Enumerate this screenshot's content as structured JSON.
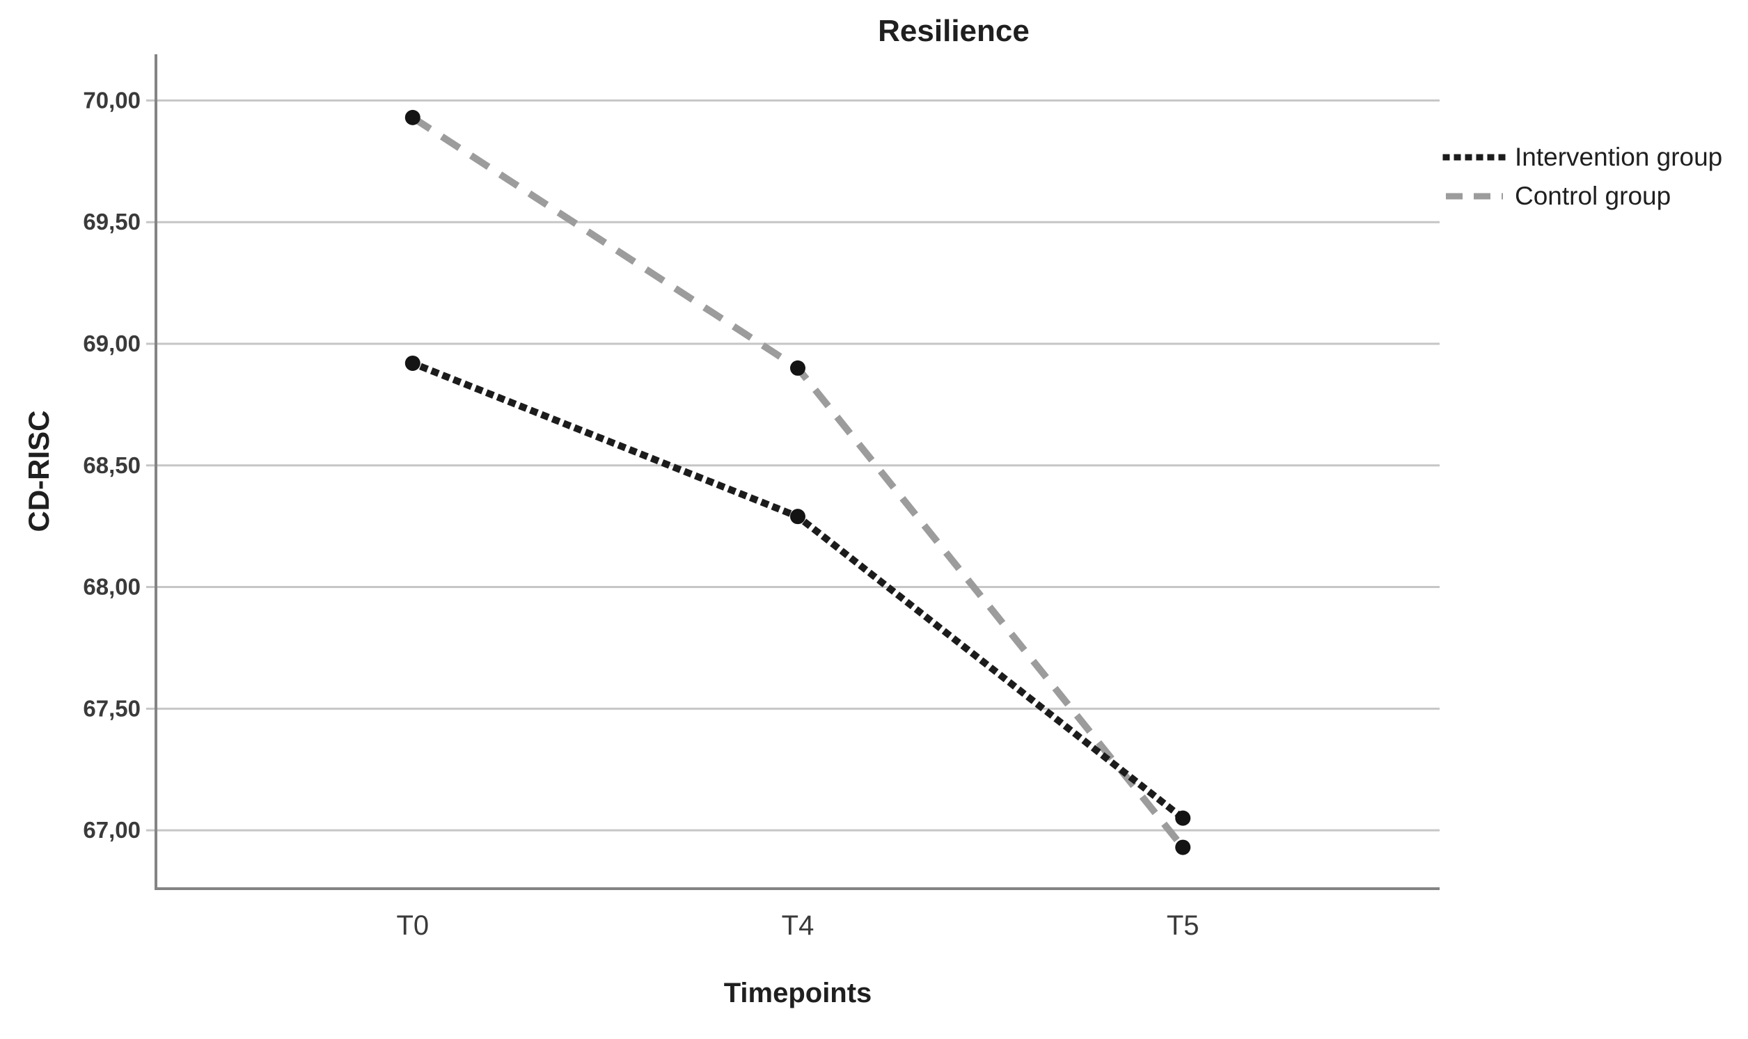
{
  "figure": {
    "title": "Resilience"
  },
  "chart_data": {
    "type": "line",
    "title": "Resilience",
    "xlabel": "Timepoints",
    "ylabel": "CD-RISC",
    "categories": [
      "T0",
      "T4",
      "T5"
    ],
    "series": [
      {
        "name": "Intervention group",
        "values": [
          68.92,
          68.29,
          67.05
        ],
        "line_style": "dotted",
        "color": "#1c1c1c",
        "marker_color": "#141414"
      },
      {
        "name": "Control group",
        "values": [
          69.93,
          68.9,
          66.93
        ],
        "line_style": "dashed",
        "color": "#9c9c9c",
        "marker_color": "#141414"
      }
    ],
    "y_ticks": {
      "values": [
        70.0,
        69.5,
        69.0,
        68.5,
        68.0,
        67.5,
        67.0
      ],
      "labels": [
        "70,00",
        "69,50",
        "69,00",
        "68,50",
        "68,00",
        "67,50",
        "67,00"
      ]
    },
    "ylim": [
      66.76,
      70.19
    ],
    "grid": true,
    "legend_position": "top-right",
    "decimal_separator": ",",
    "colors": {
      "gridline": "#c6c6c6",
      "axis": "#848484",
      "tick_text": "#3a3a3a",
      "text": "#1f1f1f",
      "background": "#ffffff"
    }
  }
}
